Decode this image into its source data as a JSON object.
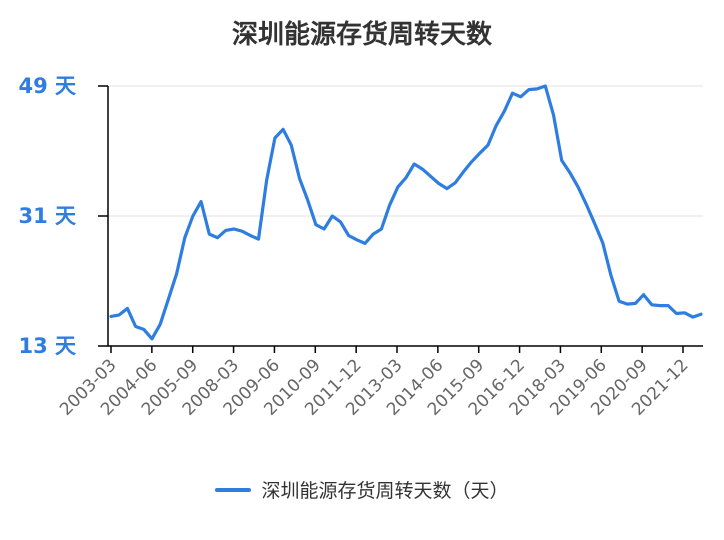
{
  "chart_data": {
    "type": "line",
    "title": "深圳能源存货周转天数",
    "xlabel": "",
    "ylabel": "",
    "ylim": [
      13,
      49
    ],
    "y_ticks": [
      {
        "value": 13,
        "label": "13 天"
      },
      {
        "value": 31,
        "label": "31 天"
      },
      {
        "value": 49,
        "label": "49 天"
      }
    ],
    "x_tick_labels": [
      "2003-03",
      "2004-06",
      "2005-09",
      "2008-03",
      "2009-06",
      "2010-09",
      "2011-12",
      "2013-03",
      "2014-06",
      "2015-09",
      "2016-12",
      "2018-03",
      "2019-06",
      "2020-09",
      "2021-12"
    ],
    "grid": true,
    "series": [
      {
        "name": "深圳能源存货周转天数（天）",
        "values": [
          17.1,
          17.3,
          18.2,
          15.7,
          15.3,
          14.0,
          16.0,
          19.5,
          23.0,
          28.0,
          31.0,
          33.0,
          28.5,
          28.0,
          29.0,
          29.2,
          28.9,
          28.3,
          27.8,
          36.0,
          41.8,
          43.0,
          40.8,
          36.2,
          33.2,
          29.8,
          29.2,
          31.0,
          30.2,
          28.3,
          27.7,
          27.2,
          28.5,
          29.2,
          32.5,
          35.0,
          36.3,
          38.2,
          37.5,
          36.5,
          35.5,
          34.8,
          35.6,
          37.1,
          38.5,
          39.7,
          40.8,
          43.5,
          45.5,
          48.0,
          47.5,
          48.5,
          48.6,
          49.0,
          45.0,
          38.7,
          37.0,
          35.0,
          32.6,
          30.0,
          27.3,
          22.8,
          19.2,
          18.8,
          18.9,
          20.1,
          18.7,
          18.6,
          18.6,
          17.5,
          17.6,
          17.0,
          17.4
        ]
      }
    ],
    "colors": {
      "line": "#2e7de0",
      "ytick": "#2e7de0",
      "grid": "#e0e0e0",
      "axis": "#000000"
    }
  }
}
